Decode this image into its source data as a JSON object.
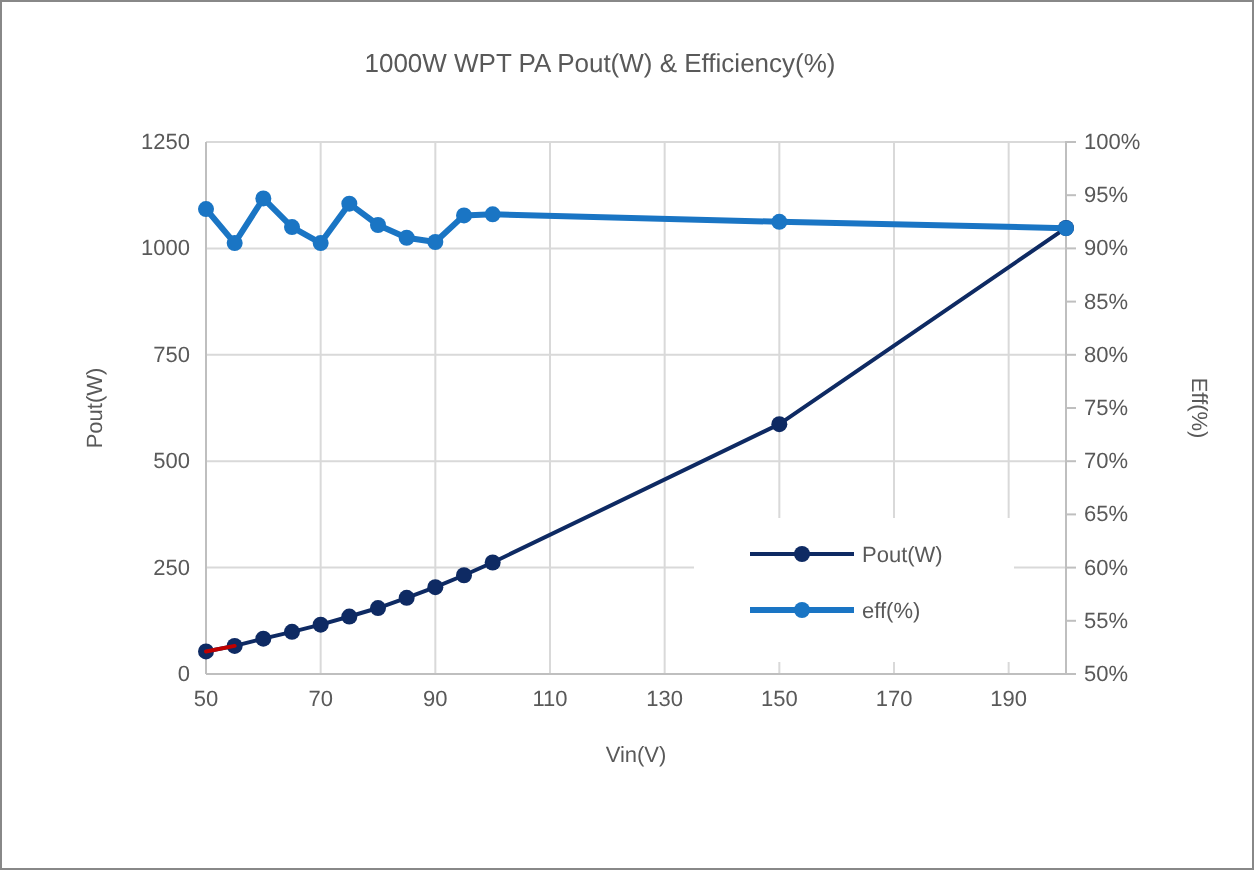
{
  "chart_data": {
    "type": "line",
    "title": "1000W WPT PA Pout(W) & Efficiency(%)",
    "xlabel": "Vin(V)",
    "ylabel": "Pout(W)",
    "y2label": "Eff(%)",
    "xlim": [
      50,
      200
    ],
    "xticks": [
      50,
      70,
      90,
      110,
      130,
      150,
      170,
      190
    ],
    "ylim": [
      0,
      1250
    ],
    "yticks": [
      0,
      250,
      500,
      750,
      1000,
      1250
    ],
    "y2lim": [
      50,
      100
    ],
    "y2ticks": [
      {
        "value": 50,
        "label": "50%"
      },
      {
        "value": 55,
        "label": "55%"
      },
      {
        "value": 60,
        "label": "60%"
      },
      {
        "value": 65,
        "label": "65%"
      },
      {
        "value": 70,
        "label": "70%"
      },
      {
        "value": 75,
        "label": "75%"
      },
      {
        "value": 80,
        "label": "80%"
      },
      {
        "value": 85,
        "label": "85%"
      },
      {
        "value": 90,
        "label": "90%"
      },
      {
        "value": 95,
        "label": "95%"
      },
      {
        "value": 100,
        "label": "100%"
      }
    ],
    "grid": true,
    "legend": "bottom right",
    "marker": "circle",
    "series": [
      {
        "name": "Pout(W)",
        "color": "#0e2a63",
        "x": [
          50,
          55,
          60,
          65,
          70,
          75,
          80,
          85,
          90,
          95,
          100,
          150,
          200
        ],
        "values": [
          53,
          66,
          83,
          99,
          116,
          135,
          155,
          179,
          204,
          232,
          262,
          587,
          1048
        ]
      },
      {
        "name": "eff(%)",
        "color": "#1a75c4",
        "axis": "y2",
        "x": [
          50,
          55,
          60,
          65,
          70,
          75,
          80,
          85,
          90,
          95,
          100,
          150,
          200
        ],
        "values": [
          93.7,
          90.5,
          94.7,
          92.0,
          90.5,
          94.2,
          92.2,
          91.0,
          90.6,
          93.1,
          93.2,
          92.5,
          91.9
        ]
      },
      {
        "color": "#c00000",
        "marker": "none",
        "x": [
          50,
          55
        ],
        "values": [
          53,
          66
        ]
      }
    ]
  }
}
